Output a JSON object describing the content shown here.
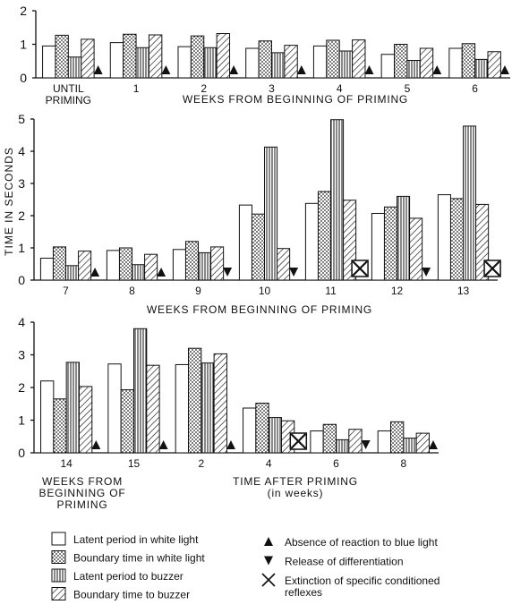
{
  "y_label": "TIME IN SECONDS",
  "legend": [
    {
      "label": "Latent period in white light",
      "pattern": "white"
    },
    {
      "label": "Boundary time in white light",
      "pattern": "dots"
    },
    {
      "label": "Latent period to buzzer",
      "pattern": "vlines"
    },
    {
      "label": "Boundary time to buzzer",
      "pattern": "hatch"
    }
  ],
  "marker_legend": [
    {
      "label": "Absence of reaction to blue light",
      "marker": "up"
    },
    {
      "label": "Release of differentiation",
      "marker": "down"
    },
    {
      "label": "Extinction of specific conditioned\nreflexes",
      "marker": "x"
    }
  ],
  "chart_data": [
    {
      "type": "bar",
      "ylim": [
        0,
        2
      ],
      "yticks": [
        0,
        1,
        2
      ],
      "categories": [
        "UNTIL\nPRIMING",
        "1",
        "2",
        "3",
        "4",
        "5",
        "6"
      ],
      "xlabel": [
        "WEEKS FROM BEGINNING OF PRIMING"
      ],
      "series": [
        {
          "values": [
            0.95,
            1.05,
            0.93,
            0.88,
            0.95,
            0.7,
            0.88
          ]
        },
        {
          "values": [
            1.27,
            1.3,
            1.25,
            1.1,
            1.12,
            1.0,
            1.02
          ]
        },
        {
          "values": [
            0.62,
            0.9,
            0.9,
            0.75,
            0.8,
            0.52,
            0.55
          ]
        },
        {
          "values": [
            1.15,
            1.28,
            1.32,
            0.97,
            1.13,
            0.88,
            0.78
          ]
        }
      ],
      "markers": [
        "up",
        "up",
        "up",
        "up",
        "up",
        "up",
        "up"
      ]
    },
    {
      "type": "bar",
      "ylim": [
        0,
        5
      ],
      "yticks": [
        0,
        1,
        2,
        3,
        4,
        5
      ],
      "categories": [
        "7",
        "8",
        "9",
        "10",
        "11",
        "12",
        "13"
      ],
      "xlabel": [
        "WEEKS FROM BEGINNING OF PRIMING"
      ],
      "series": [
        {
          "values": [
            0.68,
            0.92,
            0.95,
            2.33,
            2.38,
            2.07,
            2.65
          ]
        },
        {
          "values": [
            1.03,
            1.0,
            1.2,
            2.05,
            2.75,
            2.27,
            2.53
          ]
        },
        {
          "values": [
            0.45,
            0.48,
            0.85,
            4.13,
            4.98,
            2.6,
            4.78
          ]
        },
        {
          "values": [
            0.9,
            0.8,
            1.03,
            0.98,
            2.48,
            1.92,
            2.35
          ]
        }
      ],
      "markers": [
        "up",
        "up",
        "down",
        "down",
        "x",
        "down",
        "x"
      ]
    },
    {
      "type": "bar",
      "ylim": [
        0,
        4
      ],
      "yticks": [
        0,
        1,
        2,
        3,
        4
      ],
      "categories": [
        "14",
        "15",
        "2",
        "4",
        "6",
        "8"
      ],
      "xlabel": [
        "WEEKS FROM\nBEGINNING OF\nPRIMING",
        "TIME AFTER PRIMING\n(in weeks)"
      ],
      "series": [
        {
          "values": [
            2.2,
            2.72,
            2.7,
            1.37,
            0.67,
            0.67
          ]
        },
        {
          "values": [
            1.65,
            1.93,
            3.2,
            1.52,
            0.87,
            0.95
          ]
        },
        {
          "values": [
            2.77,
            3.8,
            2.75,
            1.08,
            0.4,
            0.45
          ]
        },
        {
          "values": [
            2.03,
            2.68,
            3.03,
            0.98,
            0.72,
            0.6
          ]
        }
      ],
      "markers": [
        "up",
        "up",
        "up",
        "x",
        "down",
        "up"
      ]
    }
  ]
}
